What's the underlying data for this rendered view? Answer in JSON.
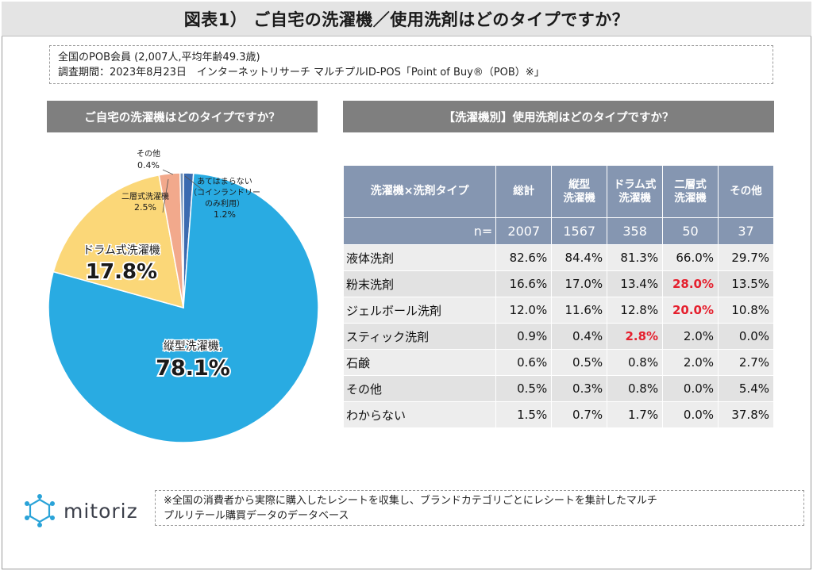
{
  "header": {
    "title": "図表1） ご自宅の洗濯機／使用洗剤はどのタイプですか？"
  },
  "meta": {
    "line1": "全国のPOB会員 (2,007人,平均年齢49.3歳)",
    "line2": "調査期間：2023年8月23日　インターネットリサーチ マルチプルID-POS「Point of Buy®（POB）※」"
  },
  "left_panel": {
    "heading": "ご自宅の洗濯機はどのタイプですか？"
  },
  "right_panel": {
    "heading": "【洗濯機別】使用洗剤はどのタイプですか？"
  },
  "chart_data": [
    {
      "type": "pie",
      "title": "ご自宅の洗濯機はどのタイプですか？",
      "slices": [
        {
          "label": "縦型洗濯機,",
          "value": 78.1,
          "value_text": "78.1%",
          "color": "#29abe2"
        },
        {
          "label": "ドラム式洗濯機",
          "value": 17.8,
          "value_text": "17.8%",
          "color": "#fbd778"
        },
        {
          "label": "二層式洗濯機",
          "value": 2.5,
          "value_text": "2.5%",
          "color": "#f2a98c"
        },
        {
          "label": "その他",
          "value": 0.4,
          "value_text": "0.4%",
          "color": "#6d8fb8"
        },
        {
          "label_lines": [
            "あてはまらない",
            "（コインランドリー",
            "のみ利用）"
          ],
          "value": 1.2,
          "value_text": "1.2%",
          "color": "#3b6bb0"
        }
      ]
    },
    {
      "type": "table",
      "title": "【洗濯機別】使用洗剤はどのタイプですか？",
      "row_header": "洗濯機×洗剤タイプ",
      "columns": [
        {
          "lines": [
            "総計"
          ],
          "n": "2007"
        },
        {
          "lines": [
            "縦型",
            "洗濯機"
          ],
          "n": "1567"
        },
        {
          "lines": [
            "ドラム式",
            "洗濯機"
          ],
          "n": "358"
        },
        {
          "lines": [
            "二層式",
            "洗濯機"
          ],
          "n": "50"
        },
        {
          "lines": [
            "その他"
          ],
          "n": "37"
        }
      ],
      "n_label": "n=",
      "rows": [
        {
          "label": "液体洗剤",
          "values": [
            "82.6%",
            "84.4%",
            "81.3%",
            "66.0%",
            "29.7%"
          ],
          "highlight": []
        },
        {
          "label": "粉末洗剤",
          "values": [
            "16.6%",
            "17.0%",
            "13.4%",
            "28.0%",
            "13.5%"
          ],
          "highlight": [
            3
          ]
        },
        {
          "label": "ジェルボール洗剤",
          "values": [
            "12.0%",
            "11.6%",
            "12.8%",
            "20.0%",
            "10.8%"
          ],
          "highlight": [
            3
          ]
        },
        {
          "label": "スティック洗剤",
          "values": [
            "0.9%",
            "0.4%",
            "2.8%",
            "2.0%",
            "0.0%"
          ],
          "highlight": [
            2
          ]
        },
        {
          "label": "石鹸",
          "values": [
            "0.6%",
            "0.5%",
            "0.8%",
            "2.0%",
            "2.7%"
          ],
          "highlight": []
        },
        {
          "label": "その他",
          "values": [
            "0.5%",
            "0.3%",
            "0.8%",
            "0.0%",
            "5.4%"
          ],
          "highlight": []
        },
        {
          "label": "わからない",
          "values": [
            "1.5%",
            "0.7%",
            "1.7%",
            "0.0%",
            "37.8%"
          ],
          "highlight": []
        }
      ],
      "highlight_color": "#e5202e"
    }
  ],
  "footer": {
    "logo_text": "mitoriz",
    "logo_icon": "network-snowflake-icon",
    "note_line1": "※全国の消費者から実際に購入したレシートを収集し、ブランドカテゴリごとにレシートを集計したマルチ",
    "note_line2": "プルリテール購買データのデータベース"
  }
}
